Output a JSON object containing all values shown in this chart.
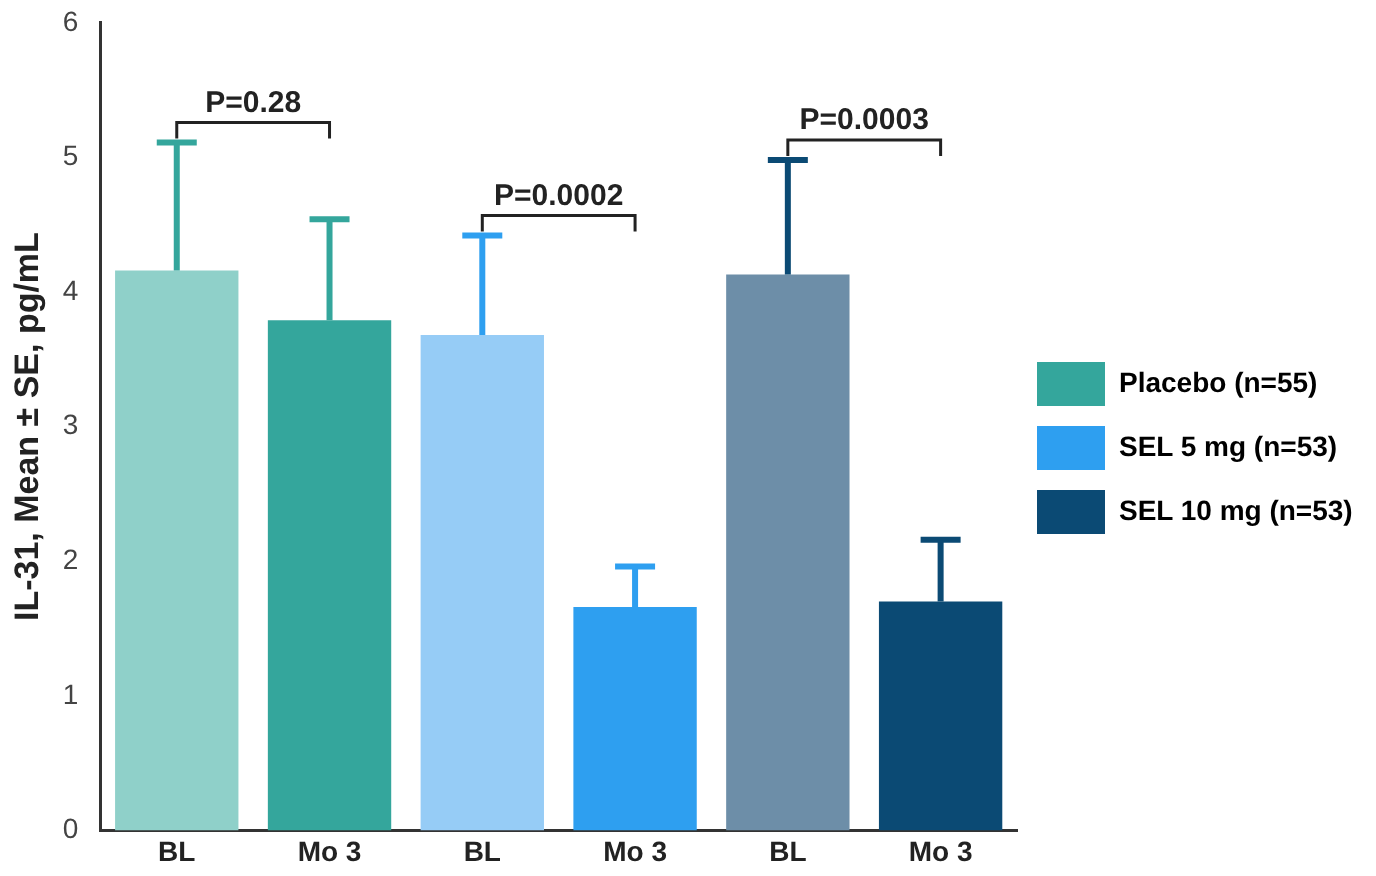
{
  "chart_data": {
    "type": "bar",
    "ylabel": "IL-31, Mean ± SE, pg/mL",
    "categories": [
      "BL",
      "Mo 3",
      "BL",
      "Mo 3",
      "BL",
      "Mo 3"
    ],
    "series": [
      {
        "name": "Placebo (n=55)",
        "color": "#34a69c",
        "colors": [
          "#8fd0c9",
          "#34a69c",
          null,
          null,
          null,
          null
        ],
        "values": [
          4.16,
          3.79,
          null,
          null,
          null,
          null
        ],
        "errors": [
          [
            4.16,
            5.11
          ],
          [
            3.79,
            4.54
          ],
          null,
          null,
          null,
          null
        ]
      },
      {
        "name": "SEL 5 mg (n=53)",
        "color": "#2e9ff0",
        "colors": [
          null,
          null,
          "#96ccf6",
          "#2e9ff0",
          null,
          null
        ],
        "values": [
          null,
          null,
          3.68,
          1.66,
          null,
          null
        ],
        "errors": [
          null,
          null,
          [
            3.68,
            4.42
          ],
          [
            1.66,
            1.96
          ],
          null,
          null
        ]
      },
      {
        "name": "SEL 10 mg (n=53)",
        "color": "#0b4a74",
        "colors": [
          null,
          null,
          null,
          null,
          "#6d8ea8",
          "#0b4a74"
        ],
        "values": [
          null,
          null,
          null,
          null,
          4.13,
          1.7
        ],
        "errors": [
          null,
          null,
          null,
          null,
          [
            4.13,
            4.98
          ],
          [
            1.7,
            2.16
          ]
        ]
      }
    ],
    "ylim": [
      0,
      6
    ],
    "yticks": [
      0,
      1,
      2,
      3,
      4,
      5,
      6
    ],
    "grid": false,
    "legend": "right",
    "annotations": [
      "P=0.28",
      "P=0.0002",
      "P=0.0003"
    ]
  }
}
